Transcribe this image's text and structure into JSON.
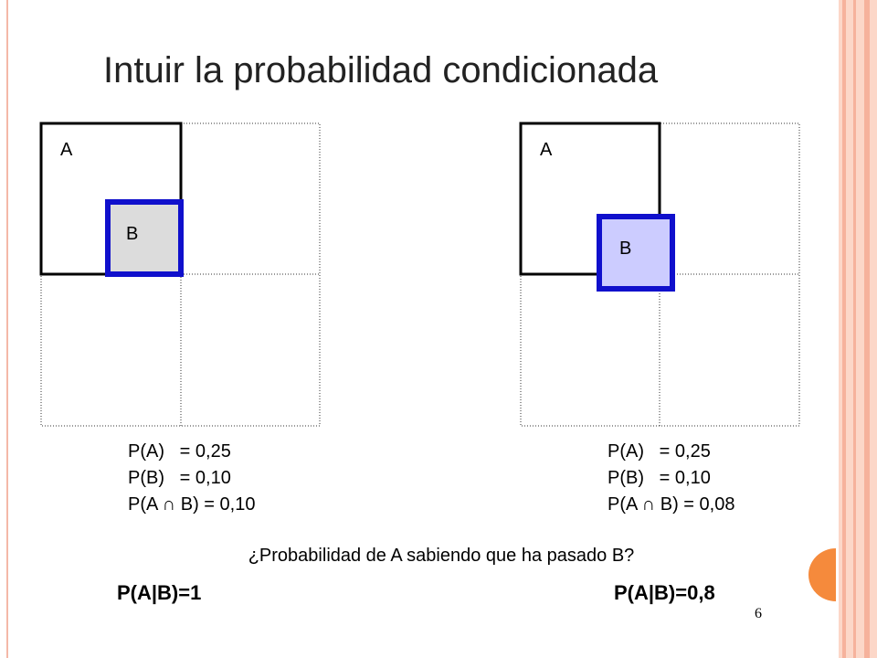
{
  "title": "Intuir la probabilidad condicionada",
  "panels": [
    {
      "label_a": "A",
      "label_b": "B",
      "lines": [
        "P(A)   = 0,25",
        "P(B)   = 0,10",
        "P(A ∩ B) = 0,10"
      ],
      "result": "P(A|B)=1"
    },
    {
      "label_a": "A",
      "label_b": "B",
      "lines": [
        "P(A)   = 0,25",
        "P(B)   = 0,10",
        "P(A ∩ B) = 0,08"
      ],
      "result": "P(A|B)=0,8"
    }
  ],
  "question": "¿Probabilidad de A sabiendo que ha pasado B?",
  "page_number": "6"
}
